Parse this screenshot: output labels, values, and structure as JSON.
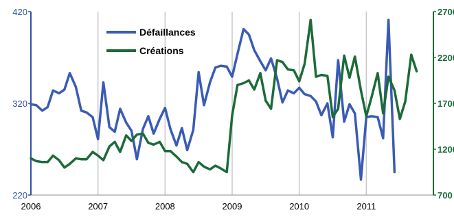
{
  "chart_data": {
    "type": "line",
    "title": "",
    "xlabel": "",
    "ylabel_left": "",
    "ylabel_right": "",
    "x_ticks": [
      "2006",
      "2007",
      "2008",
      "2009",
      "2010",
      "2011"
    ],
    "x_range": [
      2006.0,
      2012.0
    ],
    "grid": "vertical lines at years",
    "legend_position": "top-left (inside plot)",
    "axes": {
      "left": {
        "range": [
          220,
          420
        ],
        "ticks": [
          "220",
          "320",
          "420"
        ],
        "color": "#2f52a8"
      },
      "right": {
        "range": [
          700,
          2700
        ],
        "ticks": [
          "700",
          "1200",
          "1700",
          "2200",
          "2700"
        ],
        "color": "#1a6b38"
      }
    },
    "series": [
      {
        "name": "Défaillances",
        "axis": "left",
        "color": "#3a5bb5",
        "points": [
          [
            2006.0,
            319
          ],
          [
            2006.08,
            318
          ],
          [
            2006.17,
            312
          ],
          [
            2006.25,
            316
          ],
          [
            2006.33,
            334
          ],
          [
            2006.42,
            331
          ],
          [
            2006.5,
            335
          ],
          [
            2006.58,
            353
          ],
          [
            2006.67,
            338
          ],
          [
            2006.75,
            312
          ],
          [
            2006.83,
            310
          ],
          [
            2006.92,
            305
          ],
          [
            2007.0,
            281
          ],
          [
            2007.08,
            343
          ],
          [
            2007.17,
            294
          ],
          [
            2007.25,
            289
          ],
          [
            2007.33,
            314
          ],
          [
            2007.42,
            299
          ],
          [
            2007.5,
            290
          ],
          [
            2007.58,
            259
          ],
          [
            2007.67,
            292
          ],
          [
            2007.75,
            306
          ],
          [
            2007.83,
            287
          ],
          [
            2007.92,
            303
          ],
          [
            2008.0,
            315
          ],
          [
            2008.08,
            292
          ],
          [
            2008.17,
            274
          ],
          [
            2008.25,
            293
          ],
          [
            2008.33,
            269
          ],
          [
            2008.42,
            291
          ],
          [
            2008.5,
            354
          ],
          [
            2008.58,
            318
          ],
          [
            2008.67,
            343
          ],
          [
            2008.75,
            359
          ],
          [
            2008.83,
            361
          ],
          [
            2008.92,
            360
          ],
          [
            2009.0,
            349
          ],
          [
            2009.08,
            374
          ],
          [
            2009.17,
            401
          ],
          [
            2009.25,
            395
          ],
          [
            2009.33,
            378
          ],
          [
            2009.42,
            366
          ],
          [
            2009.5,
            356
          ],
          [
            2009.58,
            369
          ],
          [
            2009.67,
            347
          ],
          [
            2009.75,
            321
          ],
          [
            2009.83,
            334
          ],
          [
            2009.92,
            331
          ],
          [
            2010.0,
            337
          ],
          [
            2010.08,
            330
          ],
          [
            2010.17,
            328
          ],
          [
            2010.25,
            322
          ],
          [
            2010.33,
            307
          ],
          [
            2010.42,
            320
          ],
          [
            2010.5,
            283
          ],
          [
            2010.58,
            367
          ],
          [
            2010.67,
            300
          ],
          [
            2010.75,
            319
          ],
          [
            2010.83,
            309
          ],
          [
            2010.92,
            237
          ],
          [
            2011.0,
            305
          ],
          [
            2011.08,
            306
          ],
          [
            2011.17,
            305
          ],
          [
            2011.25,
            282
          ],
          [
            2011.33,
            411
          ],
          [
            2011.42,
            245
          ]
        ]
      },
      {
        "name": "Créations",
        "axis": "right",
        "color": "#1c6b38",
        "points": [
          [
            2006.0,
            1100
          ],
          [
            2006.08,
            1070
          ],
          [
            2006.17,
            1060
          ],
          [
            2006.25,
            1060
          ],
          [
            2006.33,
            1130
          ],
          [
            2006.42,
            1080
          ],
          [
            2006.5,
            1000
          ],
          [
            2006.58,
            1040
          ],
          [
            2006.67,
            1100
          ],
          [
            2006.75,
            1090
          ],
          [
            2006.83,
            1090
          ],
          [
            2006.92,
            1170
          ],
          [
            2007.0,
            1130
          ],
          [
            2007.08,
            1080
          ],
          [
            2007.17,
            1230
          ],
          [
            2007.25,
            1280
          ],
          [
            2007.33,
            1170
          ],
          [
            2007.42,
            1350
          ],
          [
            2007.5,
            1290
          ],
          [
            2007.58,
            1360
          ],
          [
            2007.67,
            1370
          ],
          [
            2007.75,
            1270
          ],
          [
            2007.83,
            1250
          ],
          [
            2007.92,
            1280
          ],
          [
            2008.0,
            1180
          ],
          [
            2008.08,
            1180
          ],
          [
            2008.17,
            1120
          ],
          [
            2008.25,
            1060
          ],
          [
            2008.33,
            1040
          ],
          [
            2008.42,
            950
          ],
          [
            2008.5,
            1060
          ],
          [
            2008.58,
            1010
          ],
          [
            2008.67,
            980
          ],
          [
            2008.75,
            1020
          ],
          [
            2008.83,
            990
          ],
          [
            2008.92,
            950
          ],
          [
            2009.0,
            1570
          ],
          [
            2009.08,
            1900
          ],
          [
            2009.17,
            1920
          ],
          [
            2009.25,
            1950
          ],
          [
            2009.33,
            1850
          ],
          [
            2009.42,
            2030
          ],
          [
            2009.5,
            1730
          ],
          [
            2009.58,
            1640
          ],
          [
            2009.67,
            2170
          ],
          [
            2009.75,
            2150
          ],
          [
            2009.83,
            2070
          ],
          [
            2009.92,
            2060
          ],
          [
            2010.0,
            1940
          ],
          [
            2010.08,
            2130
          ],
          [
            2010.17,
            2610
          ],
          [
            2010.25,
            1990
          ],
          [
            2010.33,
            2010
          ],
          [
            2010.42,
            2000
          ],
          [
            2010.5,
            1550
          ],
          [
            2010.58,
            1640
          ],
          [
            2010.67,
            2220
          ],
          [
            2010.75,
            1980
          ],
          [
            2010.83,
            2210
          ],
          [
            2010.92,
            1840
          ],
          [
            2011.0,
            1560
          ],
          [
            2011.08,
            1770
          ],
          [
            2011.17,
            2030
          ],
          [
            2011.25,
            1590
          ],
          [
            2011.33,
            1990
          ],
          [
            2011.42,
            1840
          ],
          [
            2011.5,
            1530
          ],
          [
            2011.58,
            1720
          ],
          [
            2011.67,
            2230
          ],
          [
            2011.75,
            2050
          ]
        ]
      }
    ]
  }
}
